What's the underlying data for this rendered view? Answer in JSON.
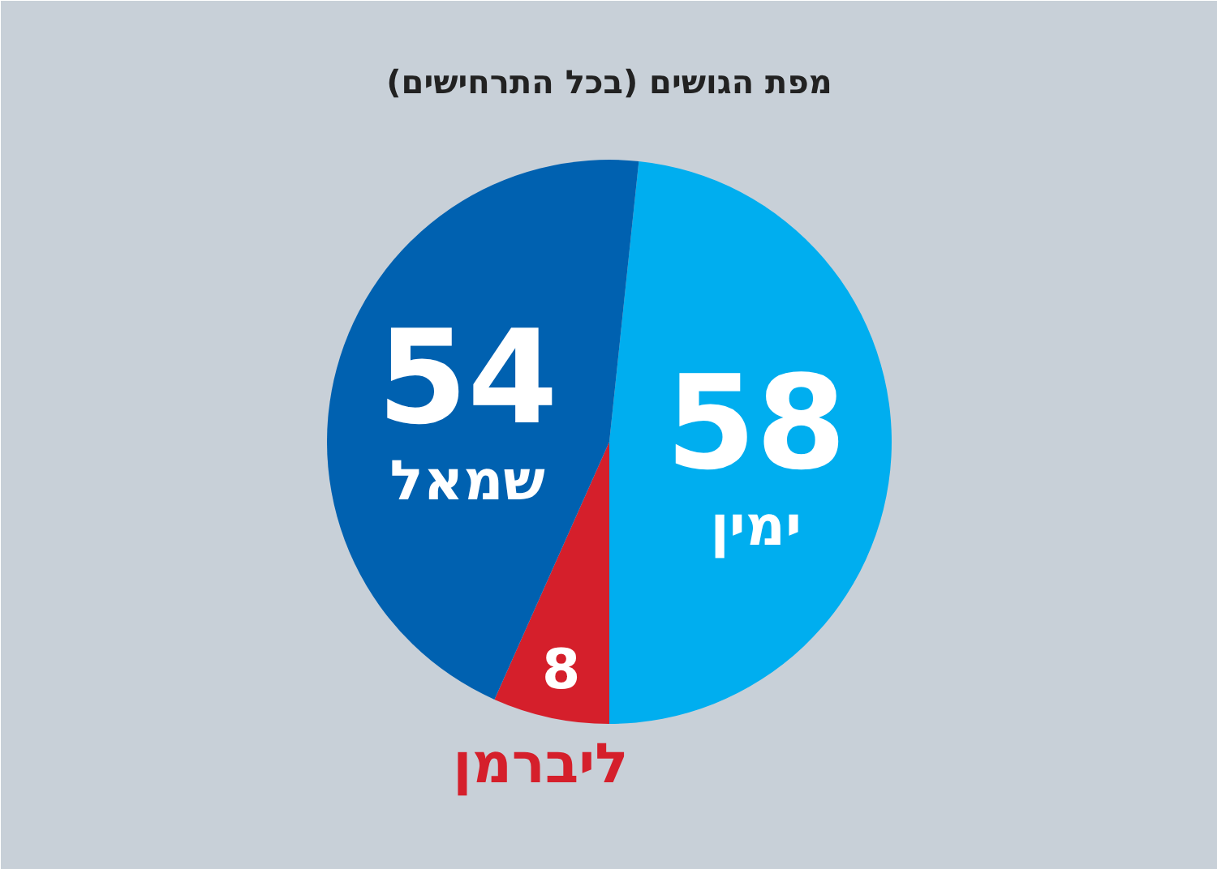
{
  "chart_data": {
    "type": "pie",
    "title": "מפת הגושים (בכל התרחישים)",
    "categories": [
      "ימין",
      "ליברמן",
      "שמאל"
    ],
    "values": [
      58,
      8,
      54
    ],
    "colors": [
      "#00aeef",
      "#d51f2b",
      "#0061b0"
    ],
    "data_labels": true
  }
}
